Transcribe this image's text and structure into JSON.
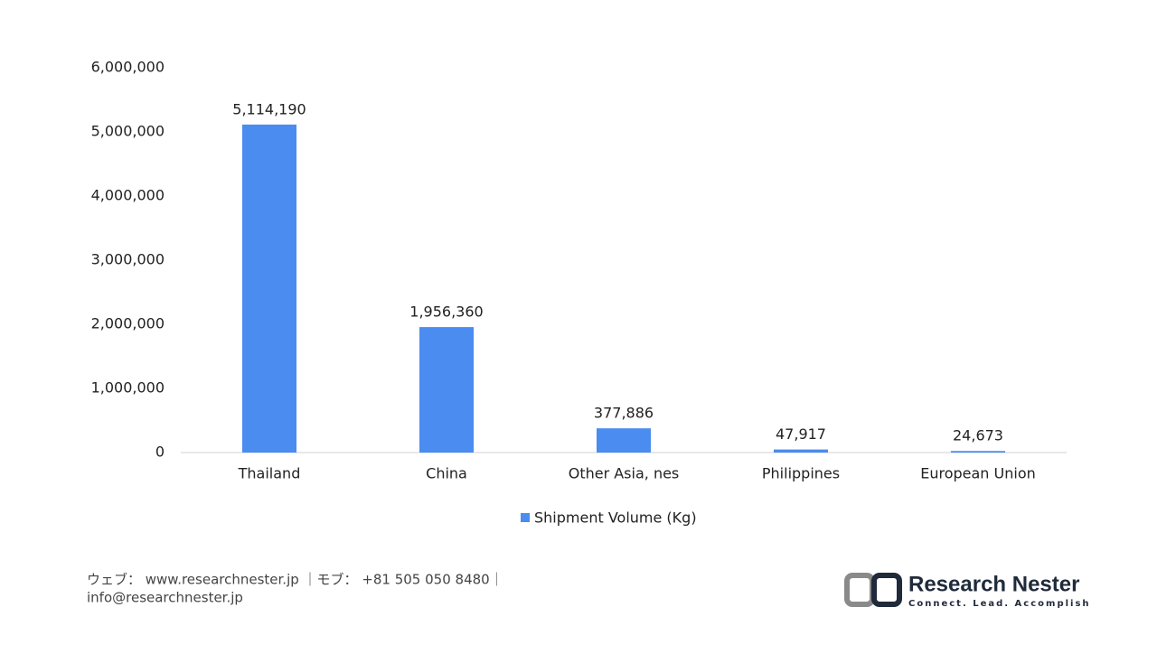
{
  "chart_data": {
    "type": "bar",
    "categories": [
      "Thailand",
      "China",
      "Other Asia, nes",
      "Philippines",
      "European Union"
    ],
    "series": [
      {
        "name": "Shipment Volume (Kg)",
        "color": "#4a8cf0",
        "values": [
          5114190,
          1956360,
          377886,
          47917,
          24673
        ],
        "value_labels": [
          "5,114,190",
          "1,956,360",
          "377,886",
          "47,917",
          "24,673"
        ]
      }
    ],
    "ylim": [
      0,
      6000000
    ],
    "yticks": [
      0,
      {
        "value": 1000000,
        "label": "1,000,000"
      },
      {
        "value": 2000000,
        "label": "2,000,000"
      },
      {
        "value": 3000000,
        "label": "3,000,000"
      },
      {
        "value": 4000000,
        "label": "4,000,000"
      },
      {
        "value": 5000000,
        "label": "5,000,000"
      },
      {
        "value": 6000000,
        "label": "6,000,000"
      }
    ],
    "grid": false,
    "legend": "bottom"
  },
  "footer": {
    "contact": "ウェブ： www.researchnester.jp ｜モブ： +81 505 050 8480｜",
    "email": "info@researchnester.jp",
    "logo_name": "Research Nester",
    "logo_tagline": "Connect. Lead. Accomplish"
  }
}
